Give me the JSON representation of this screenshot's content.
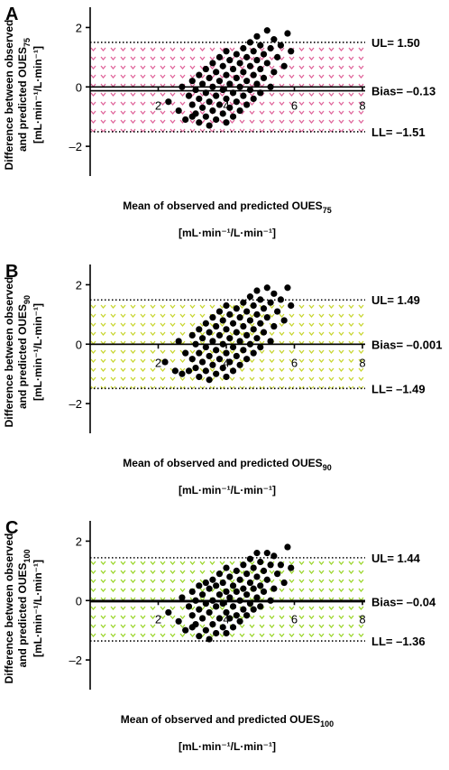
{
  "chart_data": [
    {
      "panel": "A",
      "type": "scatter",
      "ylabel_line1": "Difference between observed",
      "ylabel_line2": "and predicted OUES",
      "ylabel_sub": "75",
      "ylabel_unit": "[mL·min⁻¹/L·min⁻¹]",
      "xlabel_main": "Mean of observed and predicted OUES",
      "xlabel_sub": "75",
      "xlabel_unit": "[mL·min⁻¹/L·min⁻¹]",
      "xlim": [
        0,
        8
      ],
      "ylim": [
        -3,
        2.5
      ],
      "x_ticks": [
        "2",
        "4",
        "6",
        "8"
      ],
      "y_ticks": [
        "2",
        "0",
        "-2"
      ],
      "ul": 1.5,
      "bias": -0.13,
      "ll": -1.51,
      "ul_label": "UL= 1.50",
      "bias_label": "Bias= –0.13",
      "ll_label": "LL= –1.51",
      "band_color": "#e0649a",
      "points": [
        [
          2.3,
          -0.5
        ],
        [
          2.6,
          -0.8
        ],
        [
          2.7,
          0.0
        ],
        [
          2.8,
          -1.1
        ],
        [
          2.9,
          -0.3
        ],
        [
          3.0,
          -1.0
        ],
        [
          3.0,
          0.2
        ],
        [
          3.0,
          -0.6
        ],
        [
          3.1,
          -0.1
        ],
        [
          3.1,
          -0.9
        ],
        [
          3.2,
          0.4
        ],
        [
          3.2,
          -0.4
        ],
        [
          3.2,
          -1.2
        ],
        [
          3.3,
          0.1
        ],
        [
          3.3,
          -0.7
        ],
        [
          3.4,
          0.6
        ],
        [
          3.4,
          -0.2
        ],
        [
          3.4,
          -1.0
        ],
        [
          3.5,
          0.3
        ],
        [
          3.5,
          -0.5
        ],
        [
          3.5,
          -1.3
        ],
        [
          3.6,
          0.8
        ],
        [
          3.6,
          0.0
        ],
        [
          3.6,
          -0.8
        ],
        [
          3.7,
          0.5
        ],
        [
          3.7,
          -0.3
        ],
        [
          3.7,
          -1.1
        ],
        [
          3.8,
          1.0
        ],
        [
          3.8,
          0.2
        ],
        [
          3.8,
          -0.6
        ],
        [
          3.9,
          0.7
        ],
        [
          3.9,
          -0.1
        ],
        [
          3.9,
          -0.9
        ],
        [
          4.0,
          1.2
        ],
        [
          4.0,
          0.4
        ],
        [
          4.0,
          -0.4
        ],
        [
          4.0,
          -1.2
        ],
        [
          4.1,
          0.9
        ],
        [
          4.1,
          0.1
        ],
        [
          4.1,
          -0.7
        ],
        [
          4.2,
          0.6
        ],
        [
          4.2,
          -0.2
        ],
        [
          4.2,
          -1.0
        ],
        [
          4.3,
          1.1
        ],
        [
          4.3,
          0.3
        ],
        [
          4.3,
          -0.5
        ],
        [
          4.4,
          0.8
        ],
        [
          4.4,
          0.0
        ],
        [
          4.4,
          -0.8
        ],
        [
          4.5,
          1.3
        ],
        [
          4.5,
          0.5
        ],
        [
          4.5,
          -0.3
        ],
        [
          4.6,
          1.0
        ],
        [
          4.6,
          0.2
        ],
        [
          4.6,
          -0.6
        ],
        [
          4.7,
          1.5
        ],
        [
          4.7,
          0.7
        ],
        [
          4.7,
          -0.1
        ],
        [
          4.8,
          1.2
        ],
        [
          4.8,
          0.4
        ],
        [
          4.8,
          -0.4
        ],
        [
          4.9,
          1.7
        ],
        [
          4.9,
          0.9
        ],
        [
          4.9,
          0.1
        ],
        [
          5.0,
          1.4
        ],
        [
          5.0,
          0.6
        ],
        [
          5.0,
          -0.2
        ],
        [
          5.1,
          1.1
        ],
        [
          5.1,
          0.3
        ],
        [
          5.2,
          1.9
        ],
        [
          5.2,
          0.8
        ],
        [
          5.3,
          1.3
        ],
        [
          5.3,
          0.0
        ],
        [
          5.4,
          1.6
        ],
        [
          5.4,
          0.5
        ],
        [
          5.5,
          1.0
        ],
        [
          5.6,
          1.4
        ],
        [
          5.7,
          0.7
        ],
        [
          5.8,
          1.8
        ],
        [
          5.9,
          1.2
        ]
      ]
    },
    {
      "panel": "B",
      "type": "scatter",
      "ylabel_line1": "Difference between observed",
      "ylabel_line2": "and predicted OUES",
      "ylabel_sub": "90",
      "ylabel_unit": "[mL·min⁻¹/L·min⁻¹]",
      "xlabel_main": "Mean of observed and predicted OUES",
      "xlabel_sub": "90",
      "xlabel_unit": "[mL·min⁻¹/L·min⁻¹]",
      "xlim": [
        0,
        8
      ],
      "ylim": [
        -3,
        2.5
      ],
      "x_ticks": [
        "2",
        "4",
        "6",
        "8"
      ],
      "y_ticks": [
        "2",
        "0",
        "-2"
      ],
      "ul": 1.49,
      "bias": -0.001,
      "ll": -1.49,
      "ul_label": "UL= 1.49",
      "bias_label": "Bias= –0.001",
      "ll_label": "LL= –1.49",
      "band_color": "#c8d630",
      "points": [
        [
          2.2,
          -0.6
        ],
        [
          2.5,
          -0.9
        ],
        [
          2.6,
          0.1
        ],
        [
          2.7,
          -1.0
        ],
        [
          2.8,
          -0.3
        ],
        [
          2.9,
          -0.9
        ],
        [
          3.0,
          0.3
        ],
        [
          3.0,
          -0.5
        ],
        [
          3.1,
          0.0
        ],
        [
          3.1,
          -0.8
        ],
        [
          3.2,
          0.5
        ],
        [
          3.2,
          -0.3
        ],
        [
          3.2,
          -1.1
        ],
        [
          3.3,
          0.2
        ],
        [
          3.3,
          -0.6
        ],
        [
          3.4,
          0.7
        ],
        [
          3.4,
          -0.1
        ],
        [
          3.4,
          -0.9
        ],
        [
          3.5,
          0.4
        ],
        [
          3.5,
          -0.4
        ],
        [
          3.5,
          -1.2
        ],
        [
          3.6,
          0.9
        ],
        [
          3.6,
          0.1
        ],
        [
          3.6,
          -0.7
        ],
        [
          3.7,
          0.6
        ],
        [
          3.7,
          -0.2
        ],
        [
          3.7,
          -1.0
        ],
        [
          3.8,
          1.1
        ],
        [
          3.8,
          0.3
        ],
        [
          3.8,
          -0.5
        ],
        [
          3.9,
          0.8
        ],
        [
          3.9,
          0.0
        ],
        [
          3.9,
          -0.8
        ],
        [
          4.0,
          1.3
        ],
        [
          4.0,
          0.5
        ],
        [
          4.0,
          -0.3
        ],
        [
          4.0,
          -1.1
        ],
        [
          4.1,
          1.0
        ],
        [
          4.1,
          0.2
        ],
        [
          4.1,
          -0.6
        ],
        [
          4.2,
          0.7
        ],
        [
          4.2,
          -0.1
        ],
        [
          4.2,
          -0.9
        ],
        [
          4.3,
          1.2
        ],
        [
          4.3,
          0.4
        ],
        [
          4.3,
          -0.4
        ],
        [
          4.4,
          0.9
        ],
        [
          4.4,
          0.1
        ],
        [
          4.4,
          -0.7
        ],
        [
          4.5,
          1.4
        ],
        [
          4.5,
          0.6
        ],
        [
          4.5,
          -0.2
        ],
        [
          4.6,
          1.1
        ],
        [
          4.6,
          0.3
        ],
        [
          4.6,
          -0.5
        ],
        [
          4.7,
          1.6
        ],
        [
          4.7,
          0.8
        ],
        [
          4.7,
          0.0
        ],
        [
          4.8,
          1.3
        ],
        [
          4.8,
          0.5
        ],
        [
          4.8,
          -0.3
        ],
        [
          4.9,
          1.8
        ],
        [
          4.9,
          1.0
        ],
        [
          4.9,
          0.2
        ],
        [
          5.0,
          1.5
        ],
        [
          5.0,
          0.7
        ],
        [
          5.0,
          -0.1
        ],
        [
          5.1,
          1.2
        ],
        [
          5.1,
          0.4
        ],
        [
          5.2,
          1.9
        ],
        [
          5.2,
          0.9
        ],
        [
          5.3,
          1.4
        ],
        [
          5.3,
          0.1
        ],
        [
          5.4,
          1.7
        ],
        [
          5.4,
          0.6
        ],
        [
          5.5,
          1.1
        ],
        [
          5.6,
          1.5
        ],
        [
          5.7,
          0.8
        ],
        [
          5.8,
          1.9
        ],
        [
          5.9,
          1.3
        ]
      ]
    },
    {
      "panel": "C",
      "type": "scatter",
      "ylabel_line1": "Difference between observed",
      "ylabel_line2": "and predicted OUES",
      "ylabel_sub": "100",
      "ylabel_unit": "[mL·min⁻¹/L·min⁻¹]",
      "xlabel_main": "Mean of observed and predicted OUES",
      "xlabel_sub": "100",
      "xlabel_unit": "[mL·min⁻¹/L·min⁻¹]",
      "xlim": [
        0,
        8
      ],
      "ylim": [
        -3,
        2.5
      ],
      "x_ticks": [
        "2",
        "4",
        "6",
        "8"
      ],
      "y_ticks": [
        "2",
        "0",
        "-2"
      ],
      "ul": 1.44,
      "bias": -0.04,
      "ll": -1.36,
      "ul_label": "UL= 1.44",
      "bias_label": "Bias= –0.04",
      "ll_label": "LL= –1.36",
      "band_color": "#9bd62a",
      "points": [
        [
          2.3,
          -0.4
        ],
        [
          2.6,
          -0.7
        ],
        [
          2.7,
          0.1
        ],
        [
          2.8,
          -1.0
        ],
        [
          2.9,
          -0.2
        ],
        [
          3.0,
          -0.9
        ],
        [
          3.0,
          0.3
        ],
        [
          3.0,
          -0.5
        ],
        [
          3.1,
          0.0
        ],
        [
          3.1,
          -0.8
        ],
        [
          3.2,
          0.5
        ],
        [
          3.2,
          -0.3
        ],
        [
          3.2,
          -1.2
        ],
        [
          3.3,
          0.2
        ],
        [
          3.3,
          -0.6
        ],
        [
          3.4,
          0.6
        ],
        [
          3.4,
          -0.1
        ],
        [
          3.4,
          -1.0
        ],
        [
          3.5,
          0.4
        ],
        [
          3.5,
          -0.4
        ],
        [
          3.5,
          -1.3
        ],
        [
          3.6,
          0.7
        ],
        [
          3.6,
          0.0
        ],
        [
          3.6,
          -0.8
        ],
        [
          3.7,
          0.5
        ],
        [
          3.7,
          -0.2
        ],
        [
          3.7,
          -1.1
        ],
        [
          3.8,
          0.9
        ],
        [
          3.8,
          0.2
        ],
        [
          3.8,
          -0.6
        ],
        [
          3.9,
          0.6
        ],
        [
          3.9,
          -0.1
        ],
        [
          3.9,
          -0.9
        ],
        [
          4.0,
          1.1
        ],
        [
          4.0,
          0.3
        ],
        [
          4.0,
          -0.4
        ],
        [
          4.0,
          -1.1
        ],
        [
          4.1,
          0.8
        ],
        [
          4.1,
          0.1
        ],
        [
          4.1,
          -0.6
        ],
        [
          4.2,
          0.5
        ],
        [
          4.2,
          -0.2
        ],
        [
          4.2,
          -0.9
        ],
        [
          4.3,
          1.0
        ],
        [
          4.3,
          0.3
        ],
        [
          4.3,
          -0.5
        ],
        [
          4.4,
          0.7
        ],
        [
          4.4,
          0.0
        ],
        [
          4.4,
          -0.7
        ],
        [
          4.5,
          1.2
        ],
        [
          4.5,
          0.4
        ],
        [
          4.5,
          -0.3
        ],
        [
          4.6,
          0.9
        ],
        [
          4.6,
          0.2
        ],
        [
          4.6,
          -0.5
        ],
        [
          4.7,
          1.4
        ],
        [
          4.7,
          0.6
        ],
        [
          4.7,
          -0.1
        ],
        [
          4.8,
          1.1
        ],
        [
          4.8,
          0.4
        ],
        [
          4.8,
          -0.3
        ],
        [
          4.9,
          1.6
        ],
        [
          4.9,
          0.8
        ],
        [
          4.9,
          0.1
        ],
        [
          5.0,
          1.3
        ],
        [
          5.0,
          0.5
        ],
        [
          5.0,
          -0.2
        ],
        [
          5.1,
          1.0
        ],
        [
          5.1,
          0.3
        ],
        [
          5.2,
          1.6
        ],
        [
          5.2,
          0.7
        ],
        [
          5.3,
          1.2
        ],
        [
          5.3,
          0.0
        ],
        [
          5.4,
          1.5
        ],
        [
          5.4,
          0.4
        ],
        [
          5.5,
          0.9
        ],
        [
          5.6,
          1.2
        ],
        [
          5.7,
          0.6
        ],
        [
          5.8,
          1.8
        ],
        [
          5.9,
          1.1
        ]
      ]
    }
  ]
}
